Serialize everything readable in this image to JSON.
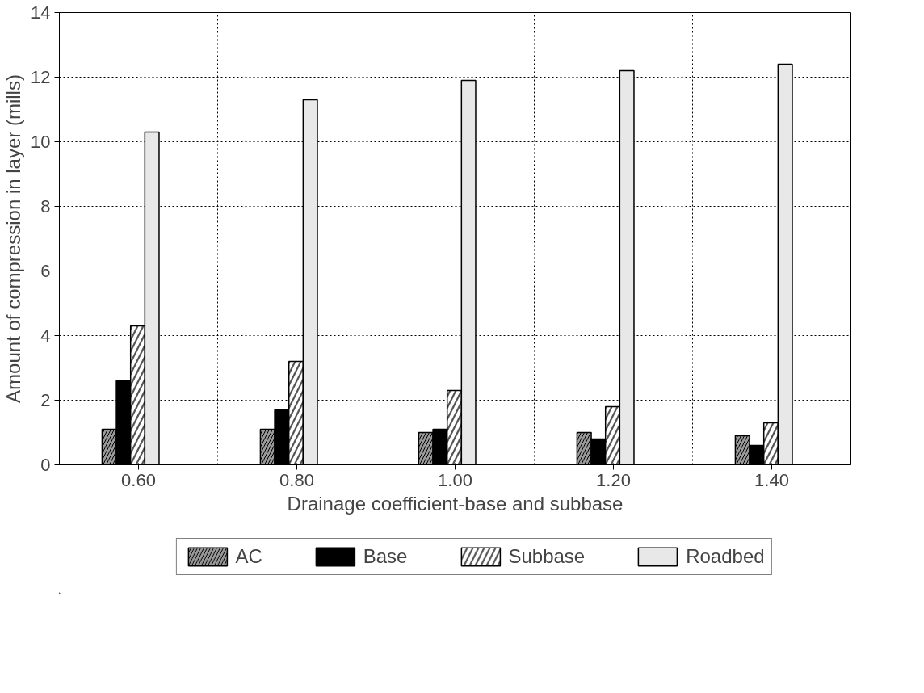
{
  "chart_data": {
    "type": "bar",
    "xlabel": "Drainage coefficient-base and subbase",
    "ylabel": "Amount of compression in layer (mills)",
    "categories": [
      "0.60",
      "0.80",
      "1.00",
      "1.20",
      "1.40"
    ],
    "series": [
      {
        "name": "AC",
        "color": "#999999",
        "values": [
          1.1,
          1.1,
          1.0,
          1.0,
          0.9
        ]
      },
      {
        "name": "Base",
        "color": "#000000",
        "values": [
          2.6,
          1.7,
          1.1,
          0.8,
          0.6
        ]
      },
      {
        "name": "Subbase",
        "color": "#555555",
        "values": [
          4.3,
          3.2,
          2.3,
          1.8,
          1.3
        ]
      },
      {
        "name": "Roadbed",
        "color": "#e8e8e8",
        "values": [
          10.3,
          11.3,
          11.9,
          12.2,
          12.4
        ]
      }
    ],
    "ylim": [
      0,
      14
    ],
    "yticks": [
      0,
      2,
      4,
      6,
      8,
      10,
      12,
      14
    ],
    "grid": true,
    "legend": "bottom"
  }
}
